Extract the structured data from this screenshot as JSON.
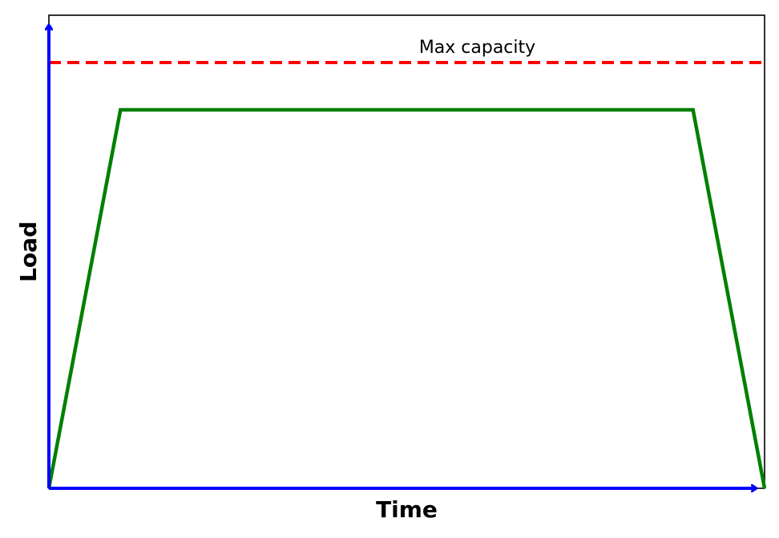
{
  "chart_data": {
    "type": "line",
    "title": "",
    "xlabel": "Time",
    "ylabel": "Load",
    "xlim": [
      0,
      10
    ],
    "ylim": [
      0,
      1
    ],
    "grid": false,
    "ticks_visible": false,
    "series": [
      {
        "color": "#008000",
        "x": [
          0,
          1,
          9,
          10
        ],
        "y": [
          0,
          0.8,
          0.8,
          0
        ]
      }
    ],
    "reference_lines": [
      {
        "label": "Max capacity",
        "y": 0.9,
        "color": "#ff0000",
        "style": "dashed"
      }
    ],
    "axis_arrow_color": "#0000ff"
  }
}
